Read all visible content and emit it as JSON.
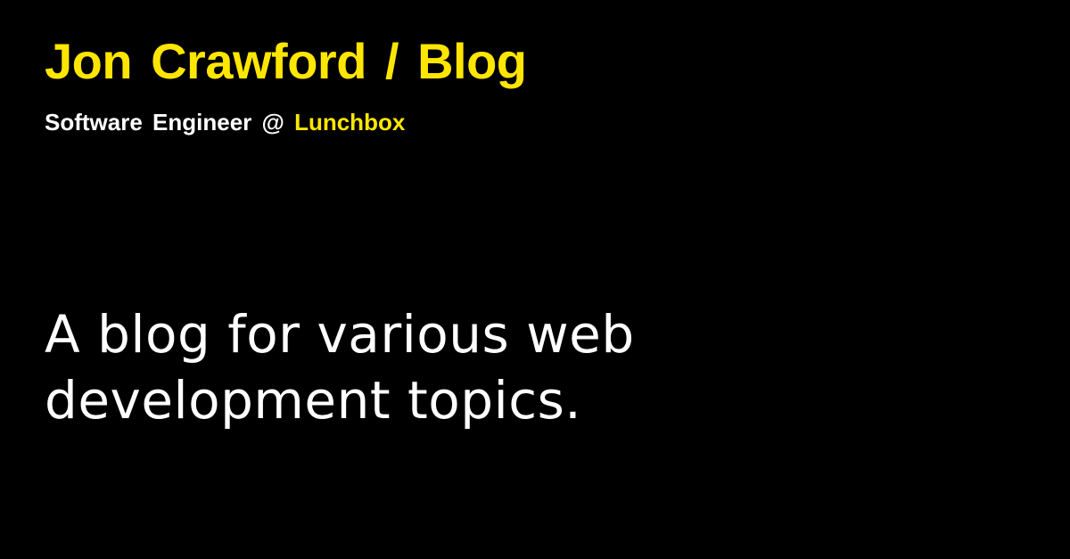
{
  "header": {
    "title": "Jon Crawford / Blog",
    "subtitle_prefix": "Software Engineer @ ",
    "company": "Lunchbox"
  },
  "main": {
    "description_lines": [
      "A blog for various web",
      "development topics."
    ]
  },
  "colors": {
    "background": "#000000",
    "accent": "#ffe600",
    "text": "#ffffff"
  }
}
